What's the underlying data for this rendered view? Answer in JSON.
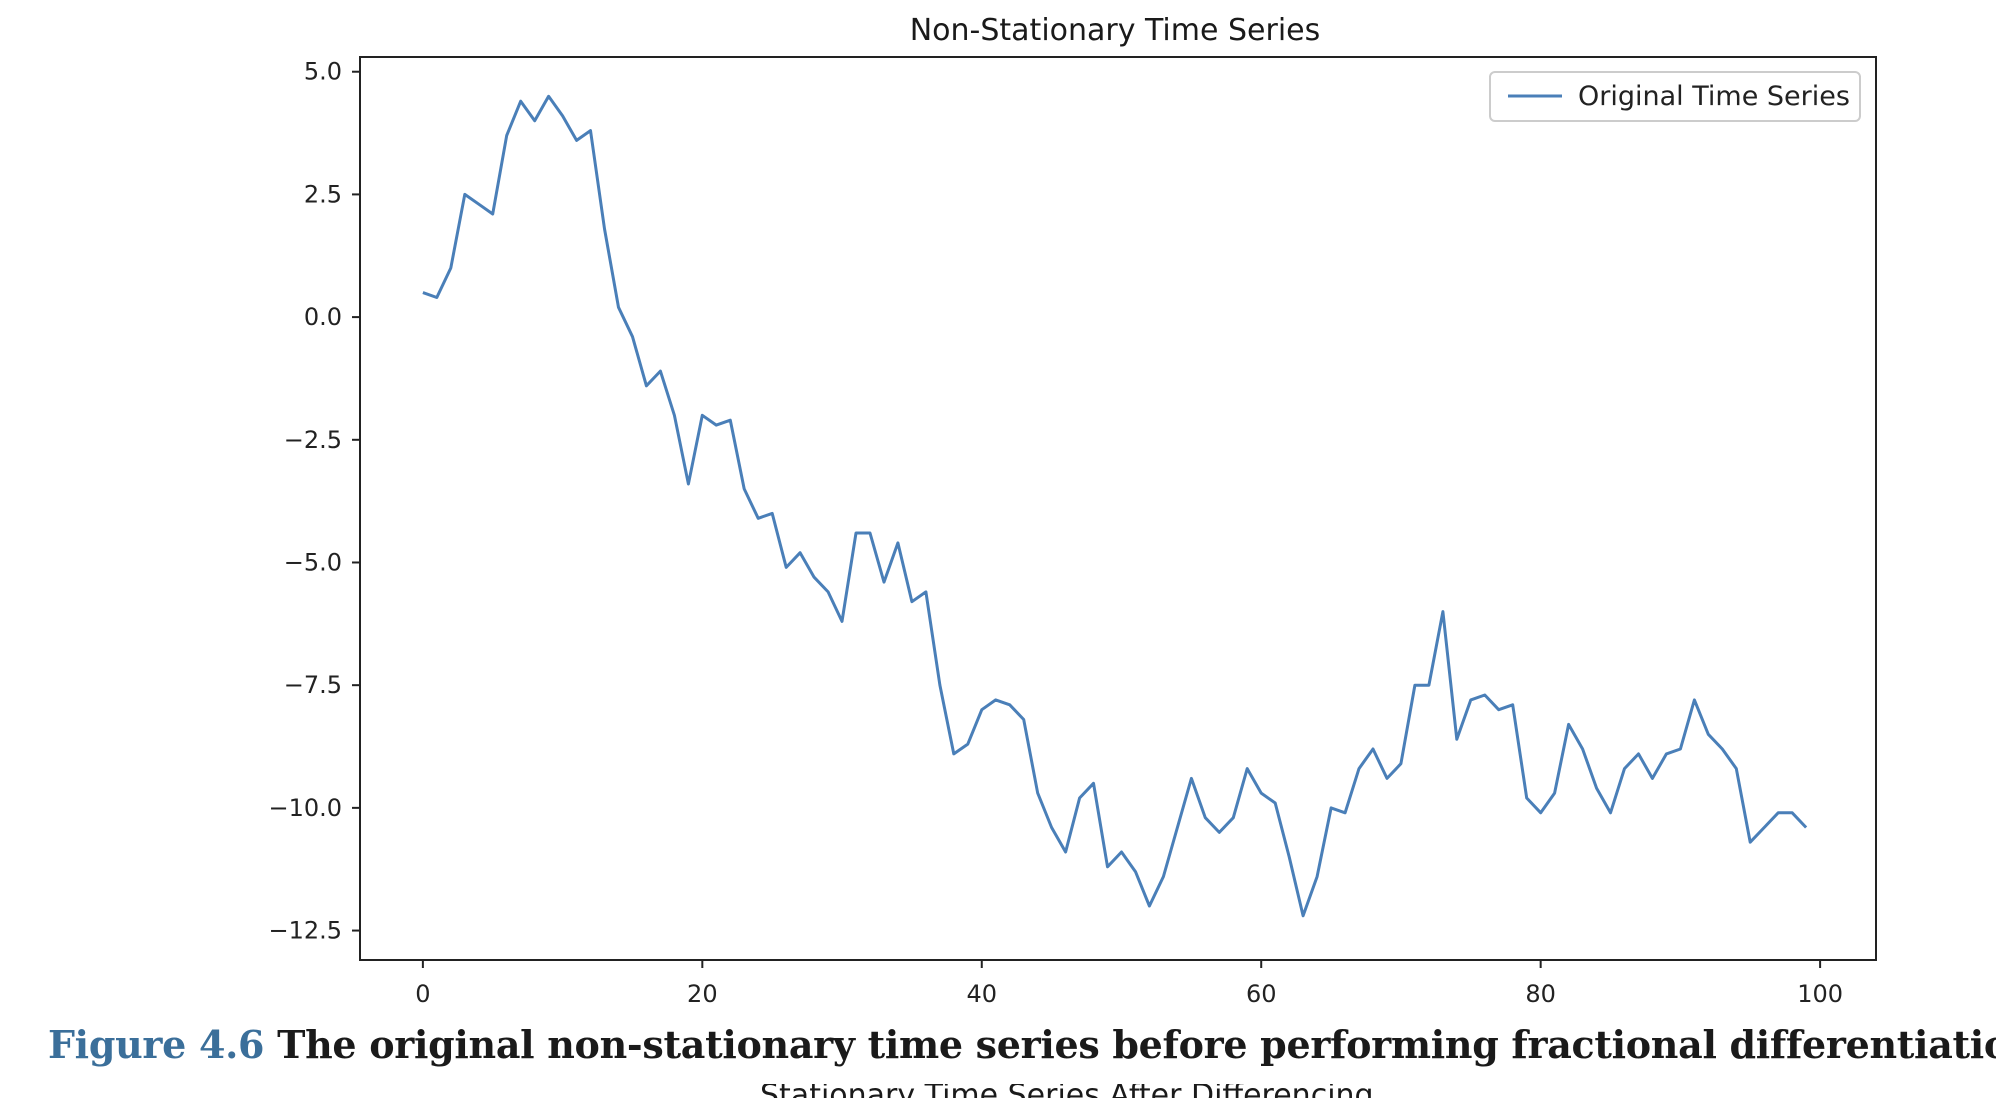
{
  "figure": {
    "label": "Figure 4.6",
    "caption": "The original non-stationary time series before performing fractional differentiation.",
    "next_chart_title": "Stationary Time Series After Differencing"
  },
  "chart_data": {
    "type": "line",
    "title": "Non-Stationary Time Series",
    "xlabel": "",
    "ylabel": "",
    "xlim": [
      -4.5,
      104
    ],
    "ylim": [
      -13.1,
      5.3
    ],
    "x_ticks": [
      0,
      20,
      40,
      60,
      80,
      100
    ],
    "y_ticks": [
      5.0,
      2.5,
      0.0,
      -2.5,
      -5.0,
      -7.5,
      -10.0,
      -12.5
    ],
    "y_tick_labels": [
      "5.0",
      "2.5",
      "0.0",
      "−2.5",
      "−5.0",
      "−7.5",
      "−10.0",
      "−12.5"
    ],
    "grid": false,
    "legend": {
      "position": "top-right",
      "entries": [
        "Original Time Series"
      ]
    },
    "series": [
      {
        "name": "Original Time Series",
        "color": "#4a7fb8",
        "x": [
          0,
          1,
          2,
          3,
          4,
          5,
          6,
          7,
          8,
          9,
          10,
          11,
          12,
          13,
          14,
          15,
          16,
          17,
          18,
          19,
          20,
          21,
          22,
          23,
          24,
          25,
          26,
          27,
          28,
          29,
          30,
          31,
          32,
          33,
          34,
          35,
          36,
          37,
          38,
          39,
          40,
          41,
          42,
          43,
          44,
          45,
          46,
          47,
          48,
          49,
          50,
          51,
          52,
          53,
          54,
          55,
          56,
          57,
          58,
          59,
          60,
          61,
          62,
          63,
          64,
          65,
          66,
          67,
          68,
          69,
          70,
          71,
          72,
          73,
          74,
          75,
          76,
          77,
          78,
          79,
          80,
          81,
          82,
          83,
          84,
          85,
          86,
          87,
          88,
          89,
          90,
          91,
          92,
          93,
          94,
          95,
          96,
          97,
          98,
          99
        ],
        "y": [
          0.5,
          0.4,
          1.0,
          2.5,
          2.3,
          2.1,
          3.7,
          4.4,
          4.0,
          4.5,
          4.1,
          3.6,
          3.8,
          1.8,
          0.2,
          -0.4,
          -1.4,
          -1.1,
          -2.0,
          -3.4,
          -2.0,
          -2.2,
          -2.1,
          -3.5,
          -4.1,
          -4.0,
          -5.1,
          -4.8,
          -5.3,
          -5.6,
          -6.2,
          -4.4,
          -4.4,
          -5.4,
          -4.6,
          -5.8,
          -5.6,
          -7.5,
          -8.9,
          -8.7,
          -8.0,
          -7.8,
          -7.9,
          -8.2,
          -9.7,
          -10.4,
          -10.9,
          -9.8,
          -9.5,
          -11.2,
          -10.9,
          -11.3,
          -12.0,
          -11.4,
          -10.4,
          -9.4,
          -10.2,
          -10.5,
          -10.2,
          -9.2,
          -9.7,
          -9.9,
          -11.0,
          -12.2,
          -11.4,
          -10.0,
          -10.1,
          -9.2,
          -8.8,
          -9.4,
          -9.1,
          -7.5,
          -7.5,
          -6.0,
          -8.6,
          -7.8,
          -7.7,
          -8.0,
          -7.9,
          -9.8,
          -10.1,
          -9.7,
          -8.3,
          -8.8,
          -9.6,
          -10.1,
          -9.2,
          -8.9,
          -9.4,
          -8.9,
          -8.8,
          -7.8,
          -8.5,
          -8.8,
          -9.2,
          -10.7,
          -10.4,
          -10.1,
          -10.1,
          -10.4
        ]
      }
    ]
  }
}
